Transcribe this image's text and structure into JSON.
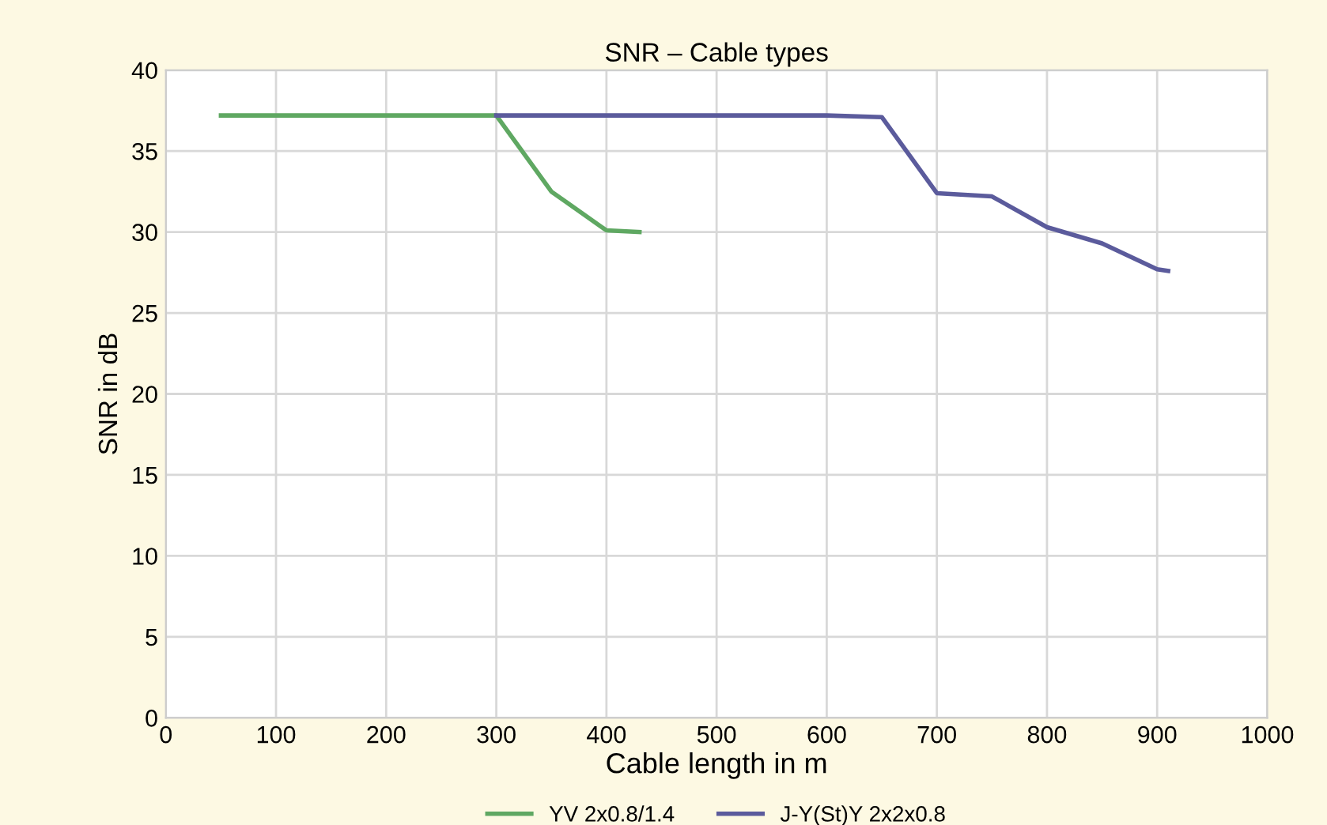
{
  "chart_data": {
    "type": "line",
    "title": "SNR – Cable types",
    "xlabel": "Cable length in m",
    "ylabel": "SNR in dB",
    "xlim": [
      0,
      1000
    ],
    "xticks": [
      0,
      100,
      200,
      300,
      400,
      500,
      600,
      700,
      800,
      900,
      1000
    ],
    "ylim": [
      0,
      40
    ],
    "yticks": [
      0,
      5,
      10,
      15,
      20,
      25,
      30,
      35,
      40
    ],
    "grid": true,
    "legend": "bottom",
    "marker": "none",
    "line_style": "solid",
    "series": [
      {
        "name": "YV 2x0.8/1.4",
        "color": "#5fa862",
        "x": [
          50,
          300,
          350,
          400,
          430
        ],
        "values": [
          37.2,
          37.2,
          32.5,
          30.1,
          30.0
        ]
      },
      {
        "name": "J-Y(St)Y 2x2x0.8",
        "color": "#5b5b9c",
        "x": [
          300,
          600,
          650,
          700,
          750,
          800,
          850,
          900,
          910
        ],
        "values": [
          37.2,
          37.2,
          37.1,
          32.4,
          32.2,
          30.3,
          29.3,
          27.7,
          27.6
        ]
      }
    ]
  }
}
